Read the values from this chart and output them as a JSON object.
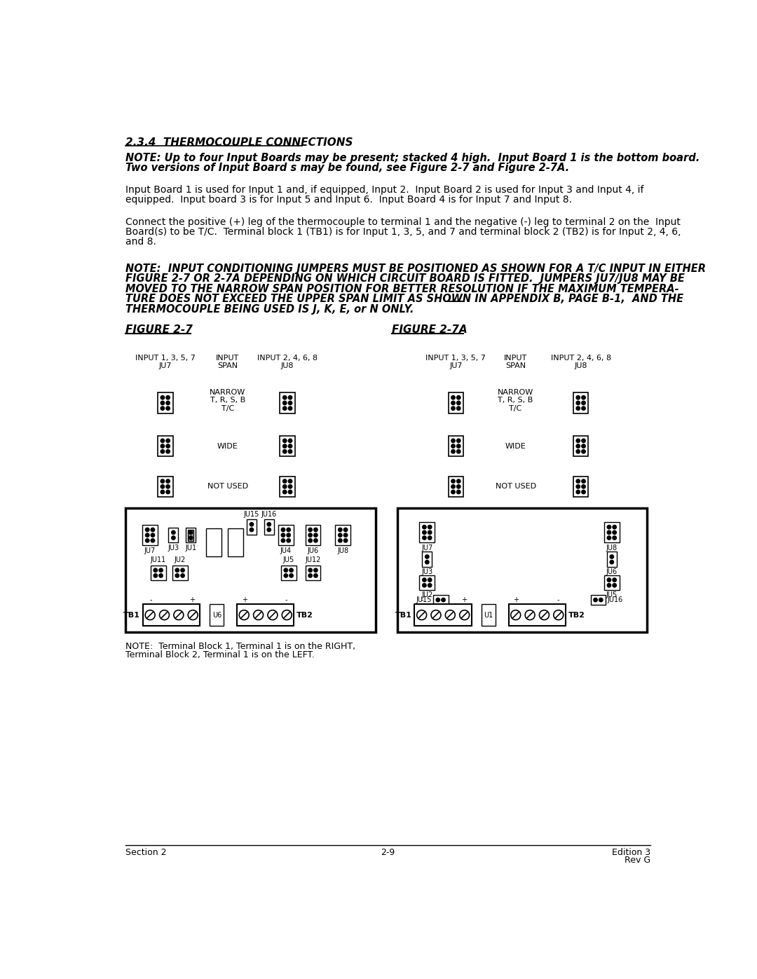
{
  "page_bg": "#ffffff",
  "title": "2.3.4  THERMOCOUPLE CONNECTIONS",
  "note1_line1": "NOTE: Up to four Input Boards may be present; stacked 4 high.  Input Board 1 is the bottom board.",
  "note1_line2": "Two versions of Input Board s may be found, see Figure 2-7 and Figure 2-7A.",
  "para1_line1": "Input Board 1 is used for Input 1 and, if equipped, Input 2.  Input Board 2 is used for Input 3 and Input 4, if",
  "para1_line2": "equipped.  Input board 3 is for Input 5 and Input 6.  Input Board 4 is for Input 7 and Input 8.",
  "para2_line1": "Connect the positive (+) leg of the thermocouple to terminal 1 and the negative (-) leg to terminal 2 on the  Input",
  "para2_line2": "Board(s) to be T/C.  Terminal block 1 (TB1) is for Input 1, 3, 5, and 7 and terminal block 2 (TB2) is for Input 2, 4, 6,",
  "para2_line3": "and 8.",
  "note2_line1": "NOTE:  INPUT CONDITIONING JUMPERS MUST BE POSITIONED AS SHOWN FOR A T/C INPUT IN EITHER",
  "note2_line2": "FIGURE 2-7 OR 2-7A DEPENDING ON WHICH CIRCUIT BOARD IS FITTED.  JUMPERS JU7/JU8 MAY BE",
  "note2_line3": "MOVED TO THE NARROW SPAN POSITION FOR BETTER RESOLUTION IF THE MAXIMUM TEMPERA-",
  "note2_line4": "TURE DOES NOT EXCEED THE UPPER SPAN LIMIT AS SHOWN IN APPENDIX B, PAGE B-1,  AND THE",
  "note2_line5": "THERMOCOUPLE BEING USED IS J, K, E, or N ONLY.",
  "fig1_title": "FIGURE 2-7",
  "fig2_title": "FIGURE 2-7A",
  "footer_left": "Section 2",
  "footer_center": "2-9",
  "footer_right_line1": "Edition 3",
  "footer_right_line2": "Rev G",
  "note_terminal_line1": "NOTE:  Terminal Block 1, Terminal 1 is on the RIGHT,",
  "note_terminal_line2": "Terminal Block 2, Terminal 1 is on the LEFT."
}
